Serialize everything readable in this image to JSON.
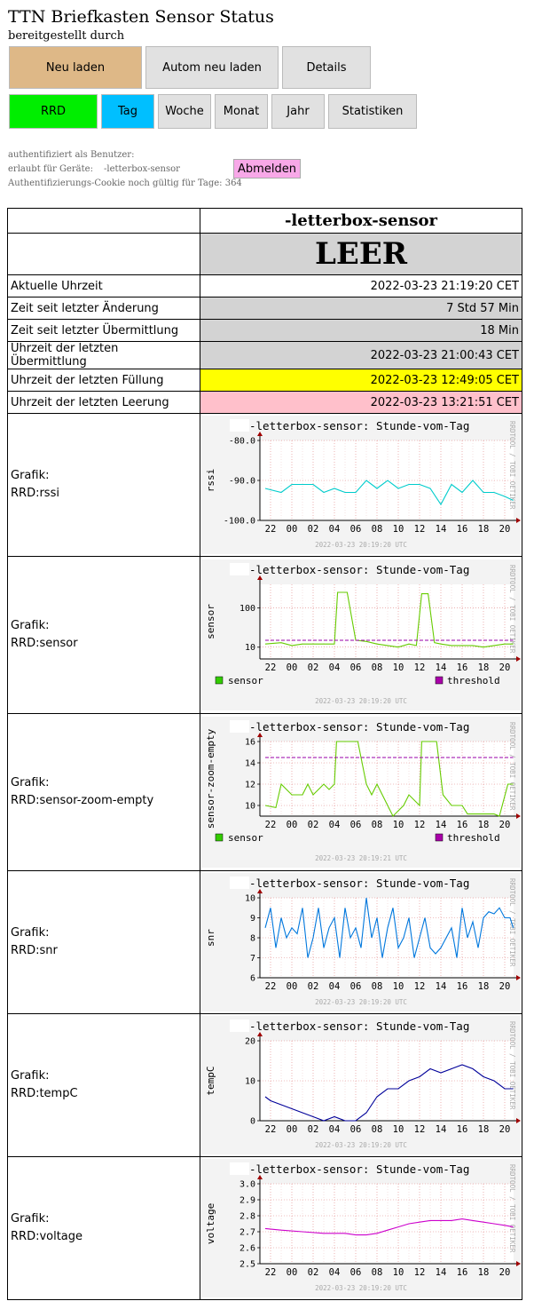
{
  "header": {
    "title": "TTN Briefkasten Sensor Status",
    "subtitle": "bereitgestellt durch"
  },
  "buttons": {
    "reload": "Neu laden",
    "auto_reload": "Autom neu laden",
    "details": "Details",
    "rrd": "RRD",
    "day": "Tag",
    "week": "Woche",
    "month": "Monat",
    "year": "Jahr",
    "stats": "Statistiken"
  },
  "auth": {
    "user_label": "authentifiziert als Benutzer:",
    "devices_label": "erlaubt für Geräte:",
    "devices_value": "-letterbox-sensor",
    "cookie_label": "Authentifizierungs-Cookie noch gültig für Tage: 364",
    "logout": "Abmelden"
  },
  "colors": {
    "reload": "#deb887",
    "rrd": "#00ee00",
    "day": "#00bfff",
    "gray": "#d3d3d3",
    "fill": "#ffff00",
    "empty": "#ffc0cb"
  },
  "status": {
    "device": "-letterbox-sensor",
    "state": "LEER",
    "rows": [
      {
        "label": "Aktuelle Uhrzeit",
        "value": "2022-03-23 21:19:20 CET"
      },
      {
        "label": "Zeit seit letzter Änderung",
        "value": "7 Std 57 Min"
      },
      {
        "label": "Zeit seit letzter Übermittlung",
        "value": "18 Min"
      },
      {
        "label": "Uhrzeit der letzten Übermittlung",
        "value": "2022-03-23 21:00:43 CET"
      },
      {
        "label": "Uhrzeit der letzten Füllung",
        "value": "2022-03-23 12:49:05 CET"
      },
      {
        "label": "Uhrzeit der letzten Leerung",
        "value": "2022-03-23 13:21:51 CET"
      }
    ]
  },
  "graphs": [
    {
      "label1": "Grafik:",
      "label2": "RRD:rssi",
      "title": "-letterbox-sensor: Stunde-vom-Tag",
      "ylabel": "rssi",
      "timestamp": "2022-03-23 20:19:20 UTC",
      "side": "RRDTOOL / TOBI OETIKER",
      "ticks": [
        "-80.0",
        "-90.0",
        "-100.0"
      ]
    },
    {
      "label1": "Grafik:",
      "label2": "RRD:sensor",
      "title": "-letterbox-sensor: Stunde-vom-Tag",
      "ylabel": "sensor",
      "timestamp": "2022-03-23 20:19:20 UTC",
      "side": "RRDTOOL / TOBI OETIKER",
      "ticks": [
        "100",
        "10"
      ],
      "legend": [
        "sensor",
        "threshold"
      ]
    },
    {
      "label1": "Grafik:",
      "label2": "RRD:sensor-zoom-empty",
      "title": "-letterbox-sensor: Stunde-vom-Tag",
      "ylabel": "sensor-zoom-empty",
      "timestamp": "2022-03-23 20:19:21 UTC",
      "side": "RRDTOOL / TOBI OETIKER",
      "ticks": [
        "16",
        "14",
        "12",
        "10"
      ],
      "legend": [
        "sensor",
        "threshold"
      ]
    },
    {
      "label1": "Grafik:",
      "label2": "RRD:snr",
      "title": "-letterbox-sensor: Stunde-vom-Tag",
      "ylabel": "snr",
      "timestamp": "2022-03-23 20:19:20 UTC",
      "side": "RRDTOOL / TOBI OETIKER",
      "ticks": [
        "10",
        "9",
        "8",
        "7",
        "6"
      ]
    },
    {
      "label1": "Grafik:",
      "label2": "RRD:tempC",
      "title": "-letterbox-sensor: Stunde-vom-Tag",
      "ylabel": "tempC",
      "timestamp": "2022-03-23 20:19:20 UTC",
      "side": "RRDTOOL / TOBI OETIKER",
      "ticks": [
        "20",
        "10",
        "0"
      ]
    },
    {
      "label1": "Grafik:",
      "label2": "RRD:voltage",
      "title": "-letterbox-sensor: Stunde-vom-Tag",
      "ylabel": "voltage",
      "timestamp": "2022-03-23 20:19:20 UTC",
      "side": "RRDTOOL / TOBI OETIKER",
      "ticks": [
        "3.0",
        "2.9",
        "2.8",
        "2.7",
        "2.6",
        "2.5"
      ]
    }
  ],
  "x_ticks": [
    "22",
    "00",
    "02",
    "04",
    "06",
    "08",
    "10",
    "12",
    "14",
    "16",
    "18",
    "20"
  ],
  "chart_data": [
    {
      "type": "line",
      "title": "-letterbox-sensor: Stunde-vom-Tag",
      "ylabel": "rssi",
      "ylim": [
        -100,
        -80
      ],
      "x_hours": [
        21.5,
        23,
        0,
        1,
        2,
        3,
        4,
        5,
        6,
        7,
        8,
        9,
        10,
        11,
        12,
        13,
        14,
        15,
        16,
        17,
        18,
        19,
        20,
        20.8
      ],
      "series": [
        {
          "values": [
            -92,
            -93,
            -91,
            -91,
            -91,
            -93,
            -92,
            -93,
            -93,
            -90,
            -92,
            -90,
            -92,
            -91,
            -91,
            -92,
            -96,
            -91,
            -93,
            -90,
            -93,
            -93,
            -94,
            -95
          ]
        }
      ]
    },
    {
      "type": "line",
      "title": "-letterbox-sensor: Stunde-vom-Tag",
      "ylabel": "sensor",
      "yscale": "log",
      "ylim": [
        5,
        400
      ],
      "x_hours": [
        21.5,
        23,
        0,
        1,
        2,
        3,
        4,
        4.3,
        5.2,
        6,
        7,
        8,
        9,
        10,
        11,
        11.7,
        12.2,
        12.8,
        13.4,
        14,
        15,
        16,
        17,
        18,
        19,
        20,
        20.8
      ],
      "series": [
        {
          "name": "sensor",
          "values": [
            12,
            13,
            11,
            12,
            12,
            12,
            12,
            250,
            250,
            15,
            14,
            12,
            11,
            10,
            12,
            11,
            230,
            230,
            13,
            12,
            11,
            11,
            11,
            10,
            11,
            12,
            12
          ]
        },
        {
          "name": "threshold",
          "values": [
            15,
            15
          ]
        }
      ]
    },
    {
      "type": "line",
      "title": "-letterbox-sensor: Stunde-vom-Tag",
      "ylabel": "sensor-zoom-empty",
      "ylim": [
        9,
        16
      ],
      "x_hours": [
        21.5,
        22.5,
        23,
        0,
        1,
        1.5,
        2,
        3,
        3.5,
        4,
        4.2,
        6.2,
        7,
        7.5,
        8,
        9,
        9.5,
        10.5,
        11,
        12,
        12.2,
        13.6,
        14.2,
        15,
        16,
        16.5,
        18,
        19,
        19.5,
        20.3,
        20.8
      ],
      "series": [
        {
          "name": "sensor",
          "values": [
            10,
            9.8,
            12,
            11,
            11,
            12,
            11,
            12,
            11.5,
            12,
            16.5,
            16.5,
            12,
            11,
            12,
            10,
            9,
            10,
            11,
            10,
            16.5,
            16.5,
            11,
            10,
            10,
            9.2,
            9.2,
            9.2,
            9,
            12,
            12
          ]
        },
        {
          "name": "threshold",
          "values": [
            14.5,
            14.5
          ]
        }
      ]
    },
    {
      "type": "line",
      "title": "-letterbox-sensor: Stunde-vom-Tag",
      "ylabel": "snr",
      "ylim": [
        6,
        10
      ],
      "x_hours": [
        21.5,
        22,
        22.5,
        23,
        23.5,
        0,
        0.5,
        1,
        1.5,
        2,
        2.5,
        3,
        3.5,
        4,
        4.5,
        5,
        5.5,
        6,
        6.5,
        7,
        7.5,
        8,
        8.5,
        9,
        9.5,
        10,
        10.5,
        11,
        11.5,
        12,
        12.5,
        13,
        13.5,
        14,
        14.5,
        15,
        15.5,
        16,
        16.5,
        17,
        17.5,
        18,
        18.5,
        19,
        19.5,
        20,
        20.5,
        20.8
      ],
      "series": [
        {
          "values": [
            8.5,
            9.5,
            7.5,
            9,
            8,
            8.5,
            8.2,
            9.5,
            7,
            8,
            9.5,
            7.5,
            8.5,
            9,
            7,
            9.5,
            8,
            8.5,
            7.5,
            10,
            8,
            9,
            7,
            8.5,
            9.5,
            7.5,
            8,
            9,
            7,
            8,
            9,
            7.5,
            7.2,
            7.5,
            8,
            8.5,
            7,
            9.5,
            8,
            8.8,
            7.5,
            9,
            9.3,
            9.2,
            9.5,
            9,
            9,
            8.5
          ]
        }
      ]
    },
    {
      "type": "line",
      "title": "-letterbox-sensor: Stunde-vom-Tag",
      "ylabel": "tempC",
      "ylim": [
        0,
        20
      ],
      "x_hours": [
        21.5,
        22,
        23,
        0,
        1,
        2,
        3,
        4,
        5,
        6,
        7,
        8,
        9,
        10,
        11,
        12,
        13,
        14,
        15,
        16,
        17,
        18,
        19,
        20,
        20.8
      ],
      "series": [
        {
          "values": [
            6,
            5,
            4,
            3,
            2,
            1,
            0,
            1,
            0,
            0,
            2,
            6,
            8,
            8,
            10,
            11,
            13,
            12,
            13,
            14,
            13,
            11,
            10,
            8,
            8
          ]
        }
      ]
    },
    {
      "type": "line",
      "title": "-letterbox-sensor: Stunde-vom-Tag",
      "ylabel": "voltage",
      "ylim": [
        2.5,
        3.0
      ],
      "x_hours": [
        21.5,
        23,
        1,
        3,
        5,
        6,
        7,
        8,
        9,
        10,
        11,
        12,
        13,
        14,
        15,
        16,
        17,
        18,
        19,
        20,
        20.8
      ],
      "series": [
        {
          "values": [
            2.72,
            2.71,
            2.7,
            2.69,
            2.69,
            2.68,
            2.68,
            2.69,
            2.71,
            2.73,
            2.75,
            2.76,
            2.77,
            2.77,
            2.77,
            2.78,
            2.77,
            2.76,
            2.75,
            2.74,
            2.73
          ]
        }
      ]
    }
  ]
}
